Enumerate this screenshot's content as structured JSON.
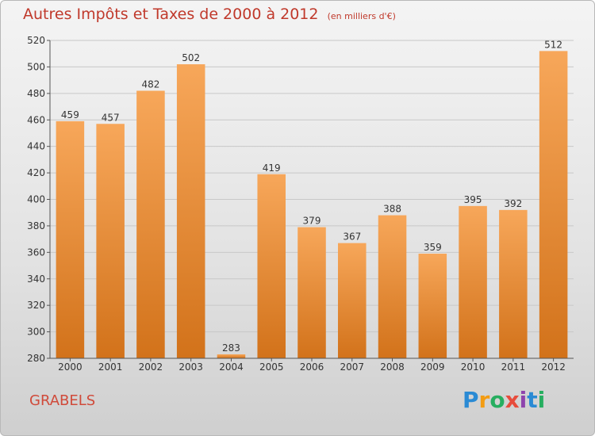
{
  "title": "Autres Impôts et Taxes de 2000 à 2012",
  "unit": "(en milliers d'€)",
  "city": "GRABELS",
  "logo": {
    "letters": [
      "P",
      "r",
      "o",
      "x",
      "i",
      "t",
      "i"
    ],
    "colors": [
      "#2a8ad4",
      "#f39c12",
      "#27ae60",
      "#e74c3c",
      "#8e44ad",
      "#2a8ad4",
      "#27ae60"
    ]
  },
  "colors": {
    "bar_top": "#f7a75a",
    "bar_bottom": "#d2721a",
    "text": "#333333"
  },
  "chart_data": {
    "type": "bar",
    "title": "Autres Impôts et Taxes de 2000 à 2012",
    "subtitle": "(en milliers d'€)",
    "categories": [
      "2000",
      "2001",
      "2002",
      "2003",
      "2004",
      "2005",
      "2006",
      "2007",
      "2008",
      "2009",
      "2010",
      "2011",
      "2012"
    ],
    "values": [
      459,
      457,
      482,
      502,
      283,
      419,
      379,
      367,
      388,
      359,
      395,
      392,
      512
    ],
    "data_labels": [
      "459",
      "457",
      "482",
      "502",
      "283",
      "419",
      "379",
      "367",
      "388",
      "359",
      "395",
      "392",
      "512"
    ],
    "ylim": [
      280,
      520
    ],
    "yticks": [
      "280",
      "300",
      "320",
      "340",
      "360",
      "380",
      "400",
      "420",
      "440",
      "460",
      "480",
      "500",
      "520"
    ],
    "grid": "horizontal"
  }
}
